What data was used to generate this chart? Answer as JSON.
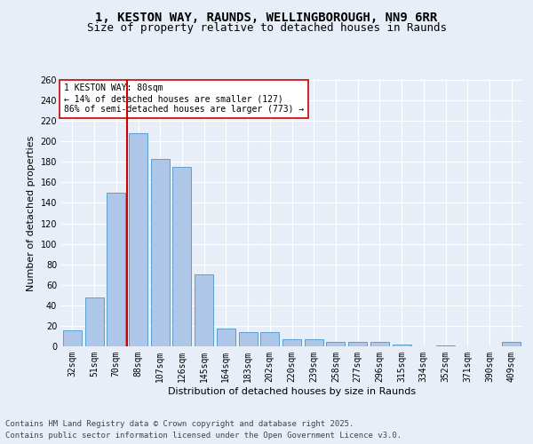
{
  "title_line1": "1, KESTON WAY, RAUNDS, WELLINGBOROUGH, NN9 6RR",
  "title_line2": "Size of property relative to detached houses in Raunds",
  "xlabel": "Distribution of detached houses by size in Raunds",
  "ylabel": "Number of detached properties",
  "categories": [
    "32sqm",
    "51sqm",
    "70sqm",
    "88sqm",
    "107sqm",
    "126sqm",
    "145sqm",
    "164sqm",
    "183sqm",
    "202sqm",
    "220sqm",
    "239sqm",
    "258sqm",
    "277sqm",
    "296sqm",
    "315sqm",
    "334sqm",
    "352sqm",
    "371sqm",
    "390sqm",
    "409sqm"
  ],
  "values": [
    16,
    48,
    150,
    208,
    183,
    175,
    70,
    17,
    14,
    14,
    7,
    7,
    4,
    4,
    4,
    2,
    0,
    1,
    0,
    0,
    4
  ],
  "bar_color": "#aec6e8",
  "bar_edge_color": "#5a9fd4",
  "vline_x": 2.5,
  "vline_color": "#cc0000",
  "annotation_text": "1 KESTON WAY: 80sqm\n← 14% of detached houses are smaller (127)\n86% of semi-detached houses are larger (773) →",
  "annotation_box_color": "#ffffff",
  "annotation_box_edge": "#cc0000",
  "ylim": [
    0,
    260
  ],
  "yticks": [
    0,
    20,
    40,
    60,
    80,
    100,
    120,
    140,
    160,
    180,
    200,
    220,
    240,
    260
  ],
  "background_color": "#e8eef8",
  "grid_color": "#ffffff",
  "footer_line1": "Contains HM Land Registry data © Crown copyright and database right 2025.",
  "footer_line2": "Contains public sector information licensed under the Open Government Licence v3.0.",
  "title_fontsize": 10,
  "subtitle_fontsize": 9,
  "label_fontsize": 8,
  "tick_fontsize": 7,
  "footer_fontsize": 6.5,
  "ann_fontsize": 7
}
